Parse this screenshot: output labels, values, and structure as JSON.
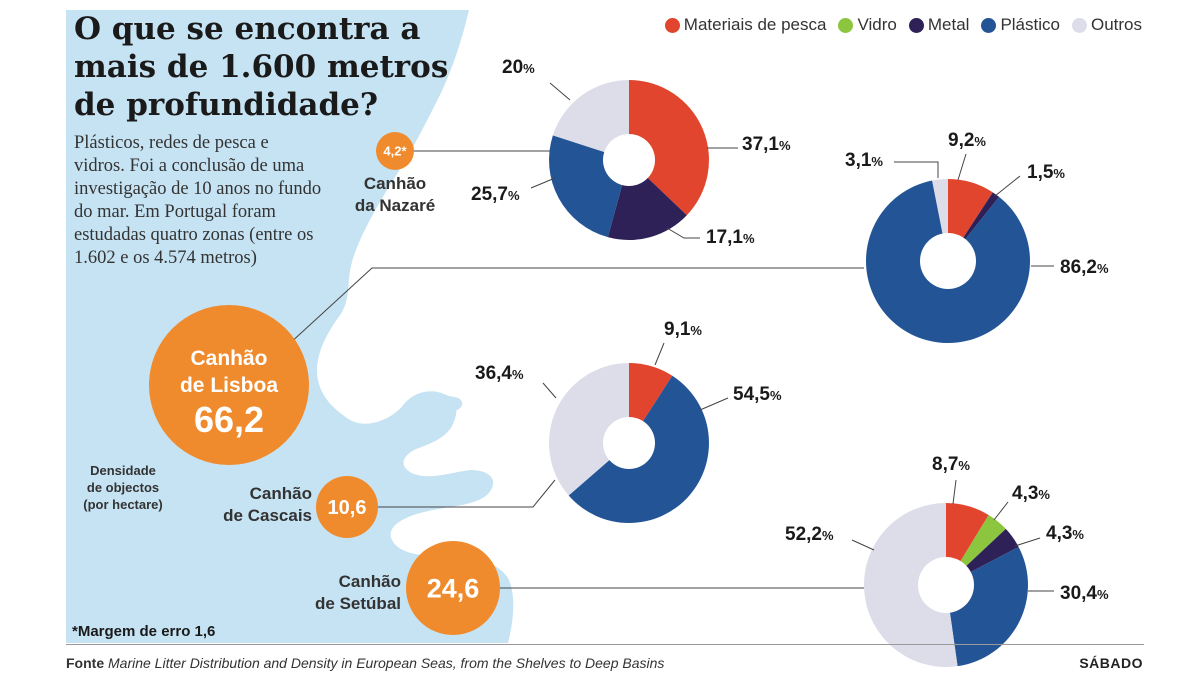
{
  "title": "O que se encontra a mais de 1.600 metros de profundidade?",
  "intro": "Plásticos, redes de pesca e vidros. Foi a conclusão de uma investigação de 10 anos no fundo do mar. Em Portugal foram estudadas quatro zonas (entre os 1.602 e os 4.574 metros)",
  "legend": [
    {
      "label": "Materiais de pesca",
      "color": "#e2452d"
    },
    {
      "label": "Vidro",
      "color": "#8cc63f"
    },
    {
      "label": "Metal",
      "color": "#2e2157"
    },
    {
      "label": "Plástico",
      "color": "#235596"
    },
    {
      "label": "Outros",
      "color": "#dcdde9"
    }
  ],
  "density_label": [
    "Densidade",
    "de objectos",
    "(por hectare)"
  ],
  "footnote": "*Margem de erro 1,6",
  "source_label": "Fonte",
  "source_text": "Marine Litter Distribution and Density in European Seas, from the Shelves to Deep Basins",
  "brand": "SÁBADO",
  "chart_data": {
    "type": "pie",
    "unit": "%",
    "categories": [
      "Materiais de pesca",
      "Vidro",
      "Metal",
      "Plástico",
      "Outros"
    ],
    "canyons": [
      {
        "name": [
          "Canhão",
          "da Nazaré"
        ],
        "density": "4,2*",
        "density_value": 4.2,
        "values": [
          37.1,
          0,
          17.1,
          25.7,
          20
        ],
        "labels": {
          "Materiais de pesca": "37,1",
          "Metal": "17,1",
          "Plástico": "25,7",
          "Outros": "20"
        }
      },
      {
        "name": [
          "Canhão",
          "de Lisboa"
        ],
        "density": "66,2",
        "density_value": 66.2,
        "values": [
          9.2,
          0,
          1.5,
          86.2,
          3.1
        ],
        "labels": {
          "Materiais de pesca": "9,2",
          "Metal": "1,5",
          "Plástico": "86,2",
          "Outros": "3,1"
        }
      },
      {
        "name": [
          "Canhão",
          "de Cascais"
        ],
        "density": "10,6",
        "density_value": 10.6,
        "values": [
          9.1,
          0,
          0,
          54.5,
          36.4
        ],
        "labels": {
          "Materiais de pesca": "9,1",
          "Plástico": "54,5",
          "Outros": "36,4"
        }
      },
      {
        "name": [
          "Canhão",
          "de Setúbal"
        ],
        "density": "24,6",
        "density_value": 24.6,
        "values": [
          8.7,
          4.3,
          4.3,
          30.4,
          52.2
        ],
        "labels": {
          "Materiais de pesca": "8,7",
          "Vidro": "4,3",
          "Metal": "4,3",
          "Plástico": "30,4",
          "Outros": "52,2"
        }
      }
    ]
  }
}
